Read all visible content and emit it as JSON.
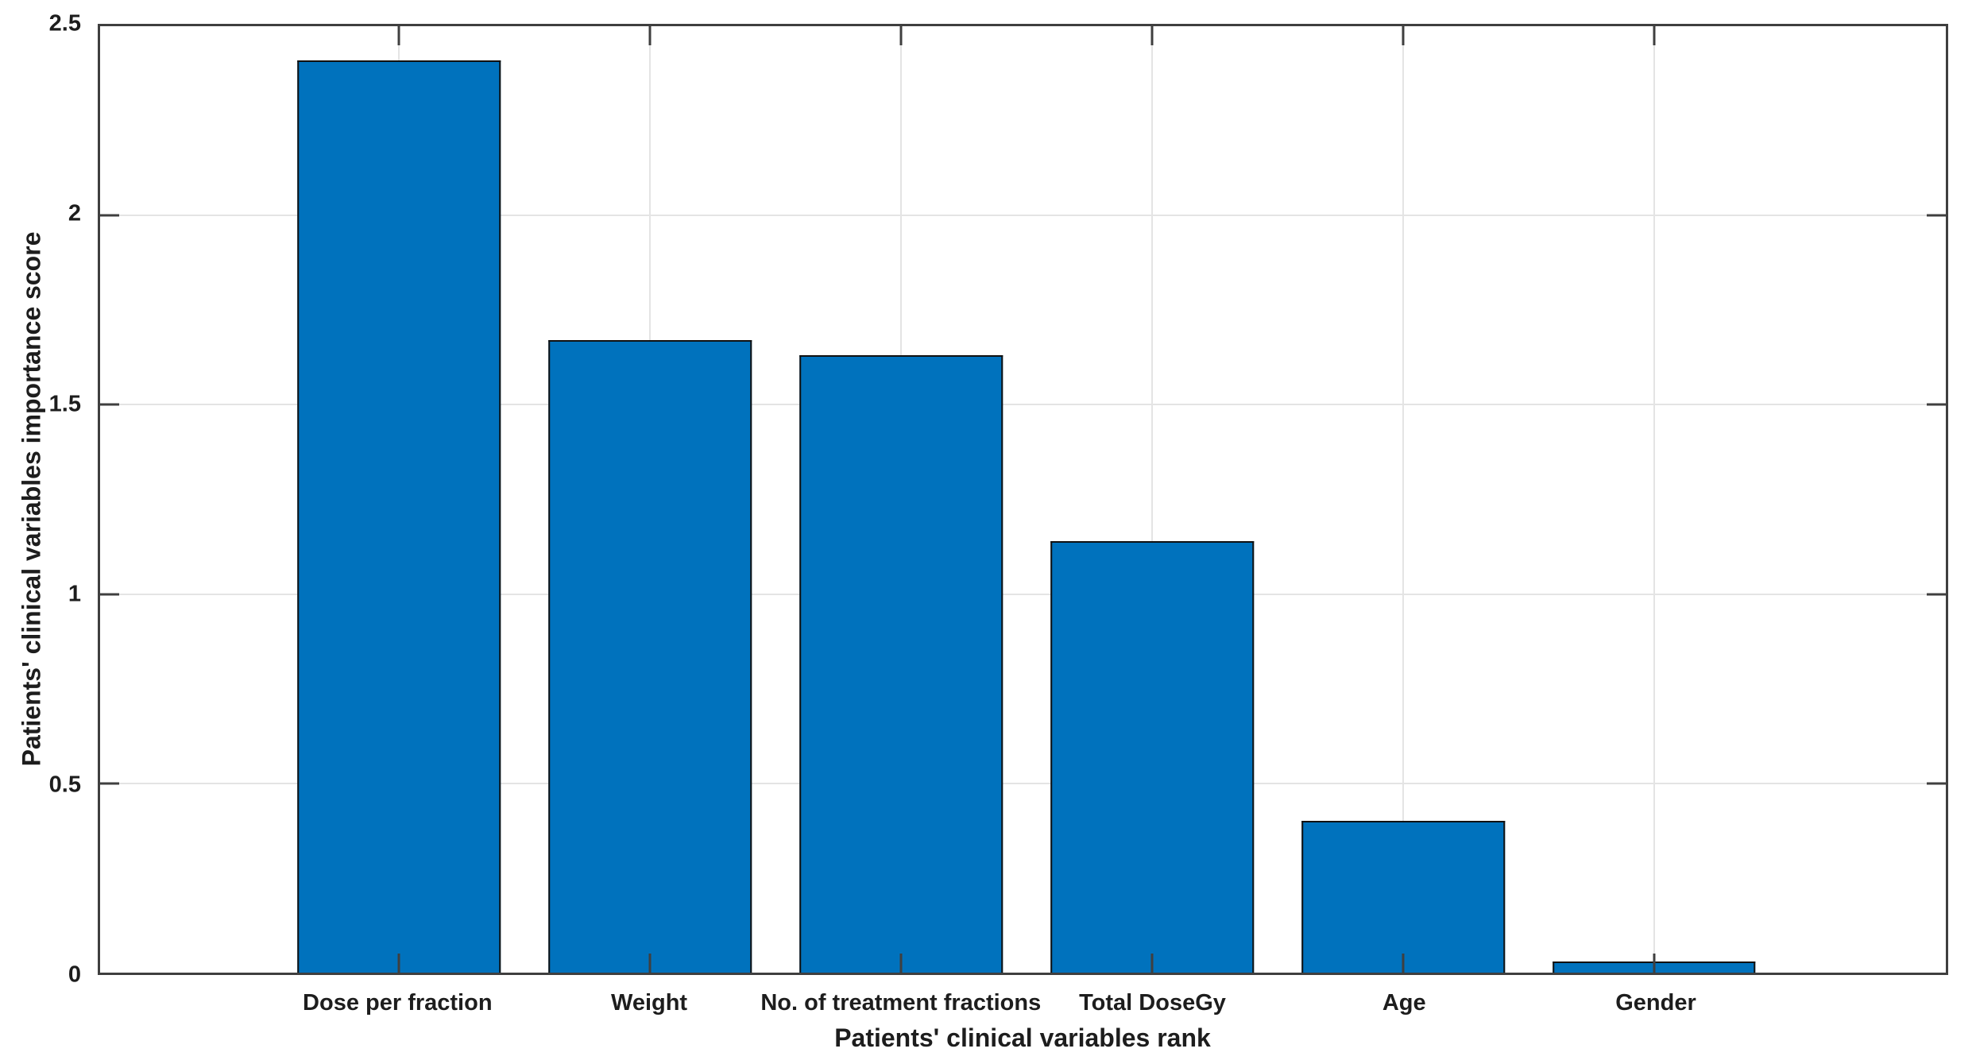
{
  "chart_data": {
    "type": "bar",
    "title": "",
    "xlabel": "Patients' clinical variables rank",
    "ylabel": "Patients' clinical variables importance score",
    "categories": [
      "Dose per fraction",
      "Weight",
      "No. of treatment fractions",
      "Total DoseGy",
      "Age",
      "Gender"
    ],
    "values": [
      2.41,
      1.67,
      1.63,
      1.14,
      0.4,
      0.03
    ],
    "ylim": [
      0,
      2.5
    ],
    "ytick_values": [
      0,
      0.5,
      1,
      1.5,
      2,
      2.5
    ],
    "ytick_labels": [
      "0",
      "0.5",
      "1",
      "1.5",
      "2",
      "2.5"
    ],
    "grid": true,
    "legend": "none",
    "bar_color": "#0072BD",
    "bar_edge_color": "#111111",
    "axis_color": "#3f3f3f",
    "grid_color": "#e4e4e4",
    "text_color": "#1d1d1d"
  }
}
